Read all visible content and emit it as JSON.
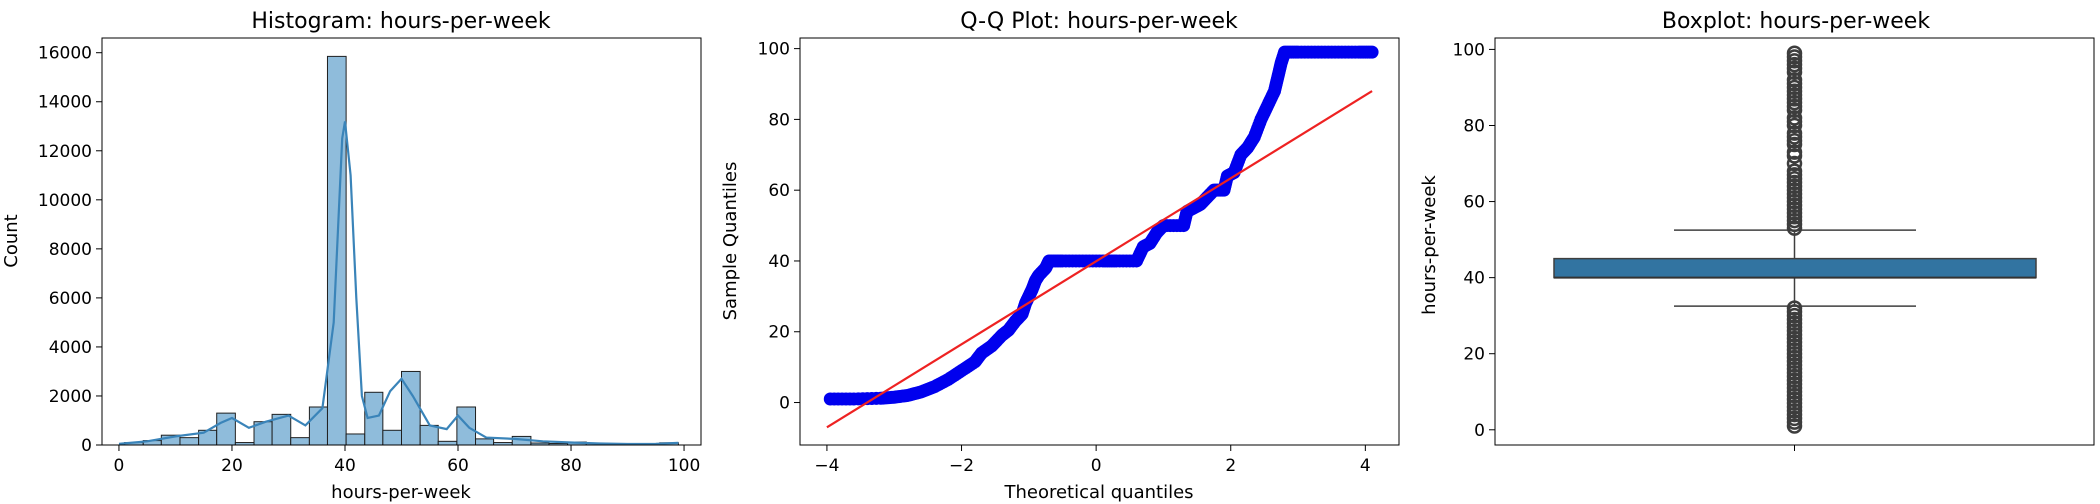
{
  "chart_data": [
    {
      "type": "histogram",
      "title": "Histogram: hours-per-week",
      "xlabel": "hours-per-week",
      "ylabel": "Count",
      "xlim": [
        -3,
        103
      ],
      "ylim": [
        0,
        16600
      ],
      "xticks": [
        0,
        20,
        40,
        60,
        80,
        100
      ],
      "yticks": [
        0,
        2000,
        4000,
        6000,
        8000,
        10000,
        12000,
        14000,
        16000
      ],
      "colors": {
        "bar_fill": "#8fbcdb",
        "bar_edge": "#1f1f1f",
        "kde": "#3a84b9"
      },
      "bins": [
        {
          "x0": 1.0,
          "x1": 4.3,
          "count": 100
        },
        {
          "x0": 4.3,
          "x1": 7.5,
          "count": 180
        },
        {
          "x0": 7.5,
          "x1": 10.8,
          "count": 400
        },
        {
          "x0": 10.8,
          "x1": 14.1,
          "count": 300
        },
        {
          "x0": 14.1,
          "x1": 17.3,
          "count": 600
        },
        {
          "x0": 17.3,
          "x1": 20.6,
          "count": 1300
        },
        {
          "x0": 20.6,
          "x1": 23.9,
          "count": 100
        },
        {
          "x0": 23.9,
          "x1": 27.1,
          "count": 950
        },
        {
          "x0": 27.1,
          "x1": 30.4,
          "count": 1250
        },
        {
          "x0": 30.4,
          "x1": 33.7,
          "count": 300
        },
        {
          "x0": 33.7,
          "x1": 36.9,
          "count": 1550
        },
        {
          "x0": 36.9,
          "x1": 40.2,
          "count": 15850
        },
        {
          "x0": 40.2,
          "x1": 43.5,
          "count": 450
        },
        {
          "x0": 43.5,
          "x1": 46.7,
          "count": 2150
        },
        {
          "x0": 46.7,
          "x1": 50.0,
          "count": 600
        },
        {
          "x0": 50.0,
          "x1": 53.3,
          "count": 3000
        },
        {
          "x0": 53.3,
          "x1": 56.5,
          "count": 800
        },
        {
          "x0": 56.5,
          "x1": 59.8,
          "count": 150
        },
        {
          "x0": 59.8,
          "x1": 63.1,
          "count": 1550
        },
        {
          "x0": 63.1,
          "x1": 66.3,
          "count": 250
        },
        {
          "x0": 66.3,
          "x1": 69.6,
          "count": 100
        },
        {
          "x0": 69.6,
          "x1": 72.9,
          "count": 350
        },
        {
          "x0": 72.9,
          "x1": 76.1,
          "count": 80
        },
        {
          "x0": 76.1,
          "x1": 79.4,
          "count": 60
        },
        {
          "x0": 79.4,
          "x1": 82.7,
          "count": 120
        },
        {
          "x0": 82.7,
          "x1": 85.9,
          "count": 60
        },
        {
          "x0": 85.9,
          "x1": 89.2,
          "count": 40
        },
        {
          "x0": 89.2,
          "x1": 92.5,
          "count": 30
        },
        {
          "x0": 92.5,
          "x1": 95.7,
          "count": 20
        },
        {
          "x0": 95.7,
          "x1": 99.0,
          "count": 90
        }
      ],
      "kde": [
        [
          0,
          50
        ],
        [
          5,
          150
        ],
        [
          10,
          350
        ],
        [
          15,
          500
        ],
        [
          18,
          900
        ],
        [
          20,
          1100
        ],
        [
          23,
          700
        ],
        [
          26,
          950
        ],
        [
          30,
          1200
        ],
        [
          33,
          800
        ],
        [
          36,
          1500
        ],
        [
          38,
          5000
        ],
        [
          39.5,
          12500
        ],
        [
          40,
          13200
        ],
        [
          41,
          11000
        ],
        [
          42,
          6000
        ],
        [
          43,
          2000
        ],
        [
          44,
          1100
        ],
        [
          46,
          1200
        ],
        [
          48,
          2200
        ],
        [
          50,
          2700
        ],
        [
          52,
          2000
        ],
        [
          55,
          800
        ],
        [
          58,
          650
        ],
        [
          60,
          1200
        ],
        [
          62,
          700
        ],
        [
          65,
          300
        ],
        [
          70,
          250
        ],
        [
          75,
          150
        ],
        [
          80,
          100
        ],
        [
          85,
          60
        ],
        [
          90,
          40
        ],
        [
          95,
          50
        ],
        [
          99,
          90
        ]
      ]
    },
    {
      "type": "scatter",
      "title": "Q-Q Plot: hours-per-week",
      "xlabel": "Theoretical quantiles",
      "ylabel": "Sample Quantiles",
      "xlim": [
        -4.4,
        4.5
      ],
      "ylim": [
        -12,
        103
      ],
      "xticks": [
        -4,
        -2,
        0,
        2,
        4
      ],
      "yticks": [
        0,
        20,
        40,
        60,
        80,
        100
      ],
      "colors": {
        "points": "#0000ee",
        "line": "#ee2222"
      },
      "reference_line": {
        "x": [
          -4,
          4.1
        ],
        "y": [
          -7,
          88
        ]
      },
      "points": [
        [
          -3.95,
          1
        ],
        [
          -3.6,
          1
        ],
        [
          -3.2,
          1.2
        ],
        [
          -3.0,
          1.5
        ],
        [
          -2.8,
          2
        ],
        [
          -2.6,
          3
        ],
        [
          -2.4,
          4.5
        ],
        [
          -2.2,
          6.5
        ],
        [
          -2.0,
          9
        ],
        [
          -1.8,
          11.5
        ],
        [
          -1.7,
          14
        ],
        [
          -1.55,
          16
        ],
        [
          -1.4,
          19
        ],
        [
          -1.3,
          20.5
        ],
        [
          -1.2,
          23
        ],
        [
          -1.1,
          25
        ],
        [
          -1.05,
          28
        ],
        [
          -1.0,
          30
        ],
        [
          -0.95,
          32
        ],
        [
          -0.9,
          34.5
        ],
        [
          -0.85,
          36
        ],
        [
          -0.75,
          38
        ],
        [
          -0.7,
          40
        ],
        [
          -0.5,
          40
        ],
        [
          -0.2,
          40
        ],
        [
          0.1,
          40
        ],
        [
          0.3,
          40
        ],
        [
          0.6,
          40
        ],
        [
          0.7,
          44
        ],
        [
          0.8,
          45
        ],
        [
          0.9,
          48
        ],
        [
          1.0,
          50
        ],
        [
          1.3,
          50
        ],
        [
          1.35,
          54
        ],
        [
          1.45,
          55
        ],
        [
          1.55,
          56
        ],
        [
          1.65,
          58
        ],
        [
          1.75,
          60
        ],
        [
          1.9,
          60
        ],
        [
          1.95,
          64
        ],
        [
          2.05,
          65
        ],
        [
          2.15,
          70
        ],
        [
          2.25,
          72
        ],
        [
          2.35,
          75
        ],
        [
          2.45,
          80
        ],
        [
          2.55,
          84
        ],
        [
          2.65,
          88
        ],
        [
          2.7,
          92
        ],
        [
          2.75,
          96
        ],
        [
          2.8,
          99
        ],
        [
          3.0,
          99
        ],
        [
          3.3,
          99
        ],
        [
          3.6,
          99
        ],
        [
          3.9,
          99
        ],
        [
          4.1,
          99
        ]
      ]
    },
    {
      "type": "boxplot",
      "title": "Boxplot: hours-per-week",
      "xlabel": "",
      "ylabel": "hours-per-week",
      "ylim": [
        -4,
        103
      ],
      "yticks": [
        0,
        20,
        40,
        60,
        80,
        100
      ],
      "colors": {
        "box": "#3274a1",
        "edge": "#3f3f3f",
        "median": "#333333",
        "outlier": "#3d3d3d"
      },
      "stats": {
        "q1": 40,
        "median": 40,
        "q3": 45,
        "whisker_low": 32.5,
        "whisker_high": 52.5
      },
      "outliers": [
        1,
        2,
        3,
        4,
        5,
        6,
        7,
        8,
        9,
        10,
        11,
        12,
        13,
        14,
        15,
        16,
        17,
        18,
        19,
        20,
        21,
        22,
        23,
        24,
        25,
        26,
        27,
        28,
        29,
        30,
        31,
        32,
        53,
        54,
        55,
        56,
        57,
        58,
        59,
        60,
        61,
        62,
        63,
        64,
        65,
        66,
        67,
        68,
        70,
        72,
        73,
        75,
        76,
        77,
        78,
        80,
        81,
        82,
        84,
        85,
        86,
        87,
        88,
        89,
        90,
        91,
        92,
        94,
        95,
        96,
        97,
        98,
        99
      ]
    }
  ]
}
